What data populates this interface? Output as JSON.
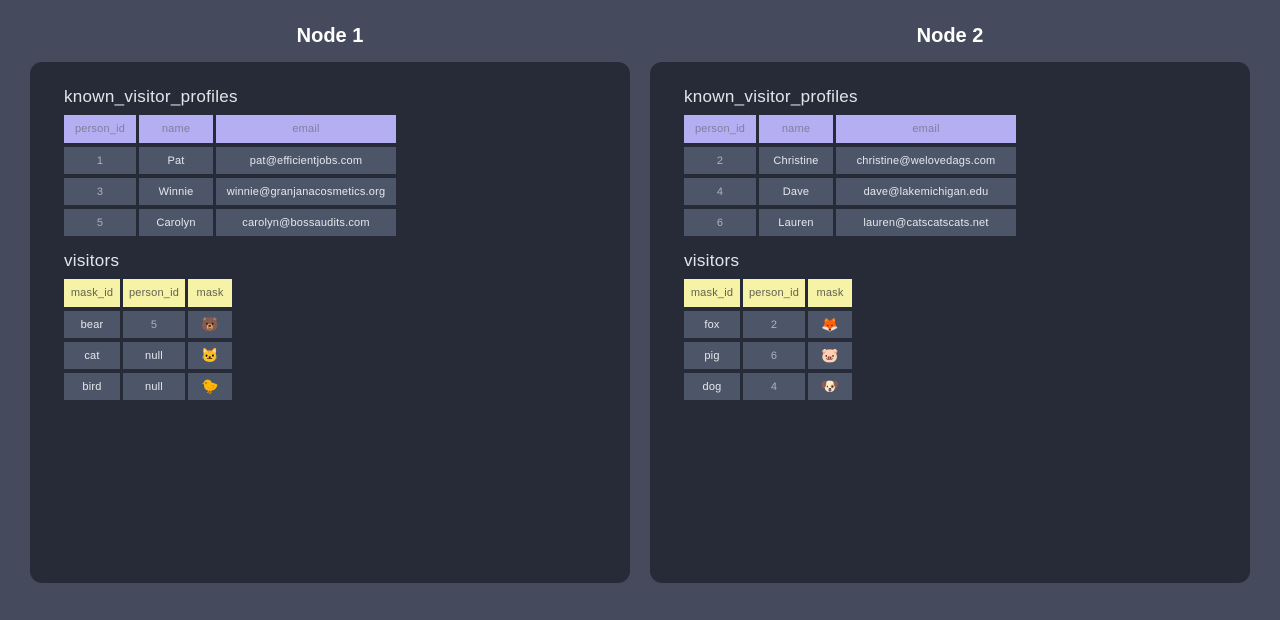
{
  "colors": {
    "page_bg": "#454a5c",
    "panel_bg": "#272a37",
    "profiles_header_bg": "#b6aef3",
    "profiles_header_text": "#817e9e",
    "visitors_header_bg": "#f6f2a6",
    "visitors_header_text": "#626356",
    "cell_bg": "#4d5569",
    "cell_text": "#e4e6eb",
    "node_title_text": "#ffffff"
  },
  "nodes": [
    {
      "title": "Node 1",
      "tables": [
        {
          "name": "known_visitor_profiles",
          "columns": [
            "person_id",
            "name",
            "email"
          ],
          "rows": [
            [
              "1",
              "Pat",
              "pat@efficientjobs.com"
            ],
            [
              "3",
              "Winnie",
              "winnie@granjanacosmetics.org"
            ],
            [
              "5",
              "Carolyn",
              "carolyn@bossaudits.com"
            ]
          ]
        },
        {
          "name": "visitors",
          "columns": [
            "mask_id",
            "person_id",
            "mask"
          ],
          "rows": [
            [
              "bear",
              "5",
              "🐻"
            ],
            [
              "cat",
              "null",
              "🐱"
            ],
            [
              "bird",
              "null",
              "🐤"
            ]
          ]
        }
      ]
    },
    {
      "title": "Node 2",
      "tables": [
        {
          "name": "known_visitor_profiles",
          "columns": [
            "person_id",
            "name",
            "email"
          ],
          "rows": [
            [
              "2",
              "Christine",
              "christine@welovedags.com"
            ],
            [
              "4",
              "Dave",
              "dave@lakemichigan.edu"
            ],
            [
              "6",
              "Lauren",
              "lauren@catscatscats.net"
            ]
          ]
        },
        {
          "name": "visitors",
          "columns": [
            "mask_id",
            "person_id",
            "mask"
          ],
          "rows": [
            [
              "fox",
              "2",
              "🦊"
            ],
            [
              "pig",
              "6",
              "🐷"
            ],
            [
              "dog",
              "4",
              "🐶"
            ]
          ]
        }
      ]
    }
  ]
}
